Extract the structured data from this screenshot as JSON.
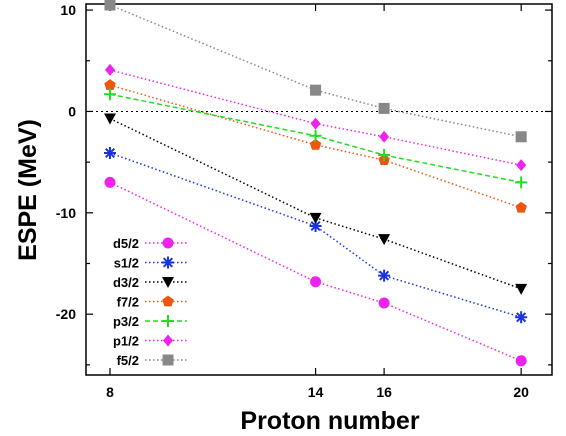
{
  "chart_data": {
    "type": "line",
    "xlabel": "Proton number",
    "ylabel": "ESPE (MeV)",
    "xlim": [
      7.3,
      20.9
    ],
    "ylim": [
      -26,
      10.6
    ],
    "x_ticks": [
      8,
      14,
      16,
      20
    ],
    "x_tick_labels": [
      "8",
      "14",
      "16",
      "20"
    ],
    "y_ticks": [
      10,
      0,
      -10,
      -20
    ],
    "y_tick_labels": [
      "10",
      "0",
      "-10",
      "-20"
    ],
    "zero_line": true,
    "grid": false,
    "legend_position": "bottom-left",
    "x": [
      8,
      14,
      16,
      20
    ],
    "series": [
      {
        "name": "d5/2",
        "values": [
          -7.0,
          -16.8,
          -18.9,
          -24.6
        ],
        "color": "#ee22ee",
        "marker": "circle",
        "dash": "dotted"
      },
      {
        "name": "s1/2",
        "values": [
          -4.1,
          -11.3,
          -16.2,
          -20.3
        ],
        "color": "#1a33dd",
        "marker": "asterisk",
        "dash": "dotted"
      },
      {
        "name": "d3/2",
        "values": [
          -0.7,
          -10.5,
          -12.6,
          -17.5
        ],
        "color": "#000000",
        "marker": "triangle-down",
        "dash": "dotted"
      },
      {
        "name": "f7/2",
        "values": [
          2.6,
          -3.3,
          -4.8,
          -9.5
        ],
        "color": "#ee5511",
        "marker": "pentagon",
        "dash": "dotted"
      },
      {
        "name": "p3/2",
        "values": [
          1.7,
          -2.4,
          -4.3,
          -7.0
        ],
        "color": "#22dd22",
        "marker": "plus",
        "dash": "dashed"
      },
      {
        "name": "p1/2",
        "values": [
          4.1,
          -1.2,
          -2.5,
          -5.3
        ],
        "color": "#ee22ee",
        "marker": "diamond",
        "dash": "dotted"
      },
      {
        "name": "f5/2",
        "values": [
          10.5,
          2.1,
          0.3,
          -2.5
        ],
        "color": "#888888",
        "marker": "square",
        "dash": "dotted"
      }
    ]
  }
}
